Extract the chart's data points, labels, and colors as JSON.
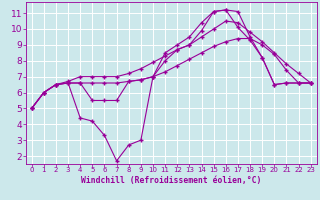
{
  "background_color": "#cce8eb",
  "grid_color": "#ffffff",
  "line_color": "#990099",
  "xlabel": "Windchill (Refroidissement éolien,°C)",
  "xlim": [
    -0.5,
    23.5
  ],
  "ylim": [
    1.5,
    11.7
  ],
  "xticks": [
    0,
    1,
    2,
    3,
    4,
    5,
    6,
    7,
    8,
    9,
    10,
    11,
    12,
    13,
    14,
    15,
    16,
    17,
    18,
    19,
    20,
    21,
    22,
    23
  ],
  "yticks": [
    2,
    3,
    4,
    5,
    6,
    7,
    8,
    9,
    10,
    11
  ],
  "line1_x": [
    0,
    1,
    2,
    3,
    4,
    5,
    6,
    7,
    8,
    9,
    10,
    11,
    12,
    13,
    14,
    15,
    16,
    17,
    18,
    19,
    20,
    21,
    22,
    23
  ],
  "line1_y": [
    5.0,
    6.0,
    6.5,
    6.6,
    4.4,
    4.2,
    3.3,
    1.7,
    2.7,
    3.0,
    7.0,
    8.0,
    8.7,
    9.0,
    9.9,
    11.1,
    11.2,
    10.1,
    9.3,
    8.2,
    6.5,
    6.6,
    6.6,
    6.6
  ],
  "line2_x": [
    0,
    1,
    2,
    3,
    4,
    5,
    6,
    7,
    8,
    9,
    10,
    11,
    12,
    13,
    14,
    15,
    16,
    17,
    18,
    19,
    20,
    21,
    22,
    23
  ],
  "line2_y": [
    5.0,
    6.0,
    6.5,
    6.6,
    6.6,
    6.6,
    6.6,
    6.6,
    6.7,
    6.8,
    7.0,
    7.3,
    7.7,
    8.1,
    8.5,
    8.9,
    9.2,
    9.4,
    9.4,
    9.0,
    8.4,
    7.4,
    6.6,
    6.6
  ],
  "line3_x": [
    0,
    1,
    2,
    3,
    4,
    5,
    6,
    7,
    8,
    9,
    10,
    11,
    12,
    13,
    14,
    15,
    16,
    17,
    18,
    19,
    20,
    21,
    22,
    23
  ],
  "line3_y": [
    5.0,
    6.0,
    6.5,
    6.7,
    7.0,
    7.0,
    7.0,
    7.0,
    7.2,
    7.5,
    7.9,
    8.3,
    8.7,
    9.0,
    9.5,
    10.0,
    10.5,
    10.4,
    9.8,
    9.2,
    8.5,
    7.8,
    7.2,
    6.6
  ],
  "line4_x": [
    0,
    1,
    2,
    3,
    4,
    5,
    6,
    7,
    8,
    9,
    10,
    11,
    12,
    13,
    14,
    15,
    16,
    17,
    18,
    19,
    20,
    21,
    22,
    23
  ],
  "line4_y": [
    5.0,
    6.0,
    6.5,
    6.6,
    6.6,
    5.5,
    5.5,
    5.5,
    6.7,
    6.8,
    7.0,
    8.5,
    9.0,
    9.5,
    10.4,
    11.1,
    11.2,
    11.1,
    9.5,
    8.2,
    6.5,
    6.6,
    6.6,
    6.6
  ],
  "font_size_xlabel": 5.8,
  "font_size_yticks": 6.5,
  "font_size_xticks": 5.0,
  "marker": "+",
  "markersize": 2.5,
  "linewidth": 0.8
}
